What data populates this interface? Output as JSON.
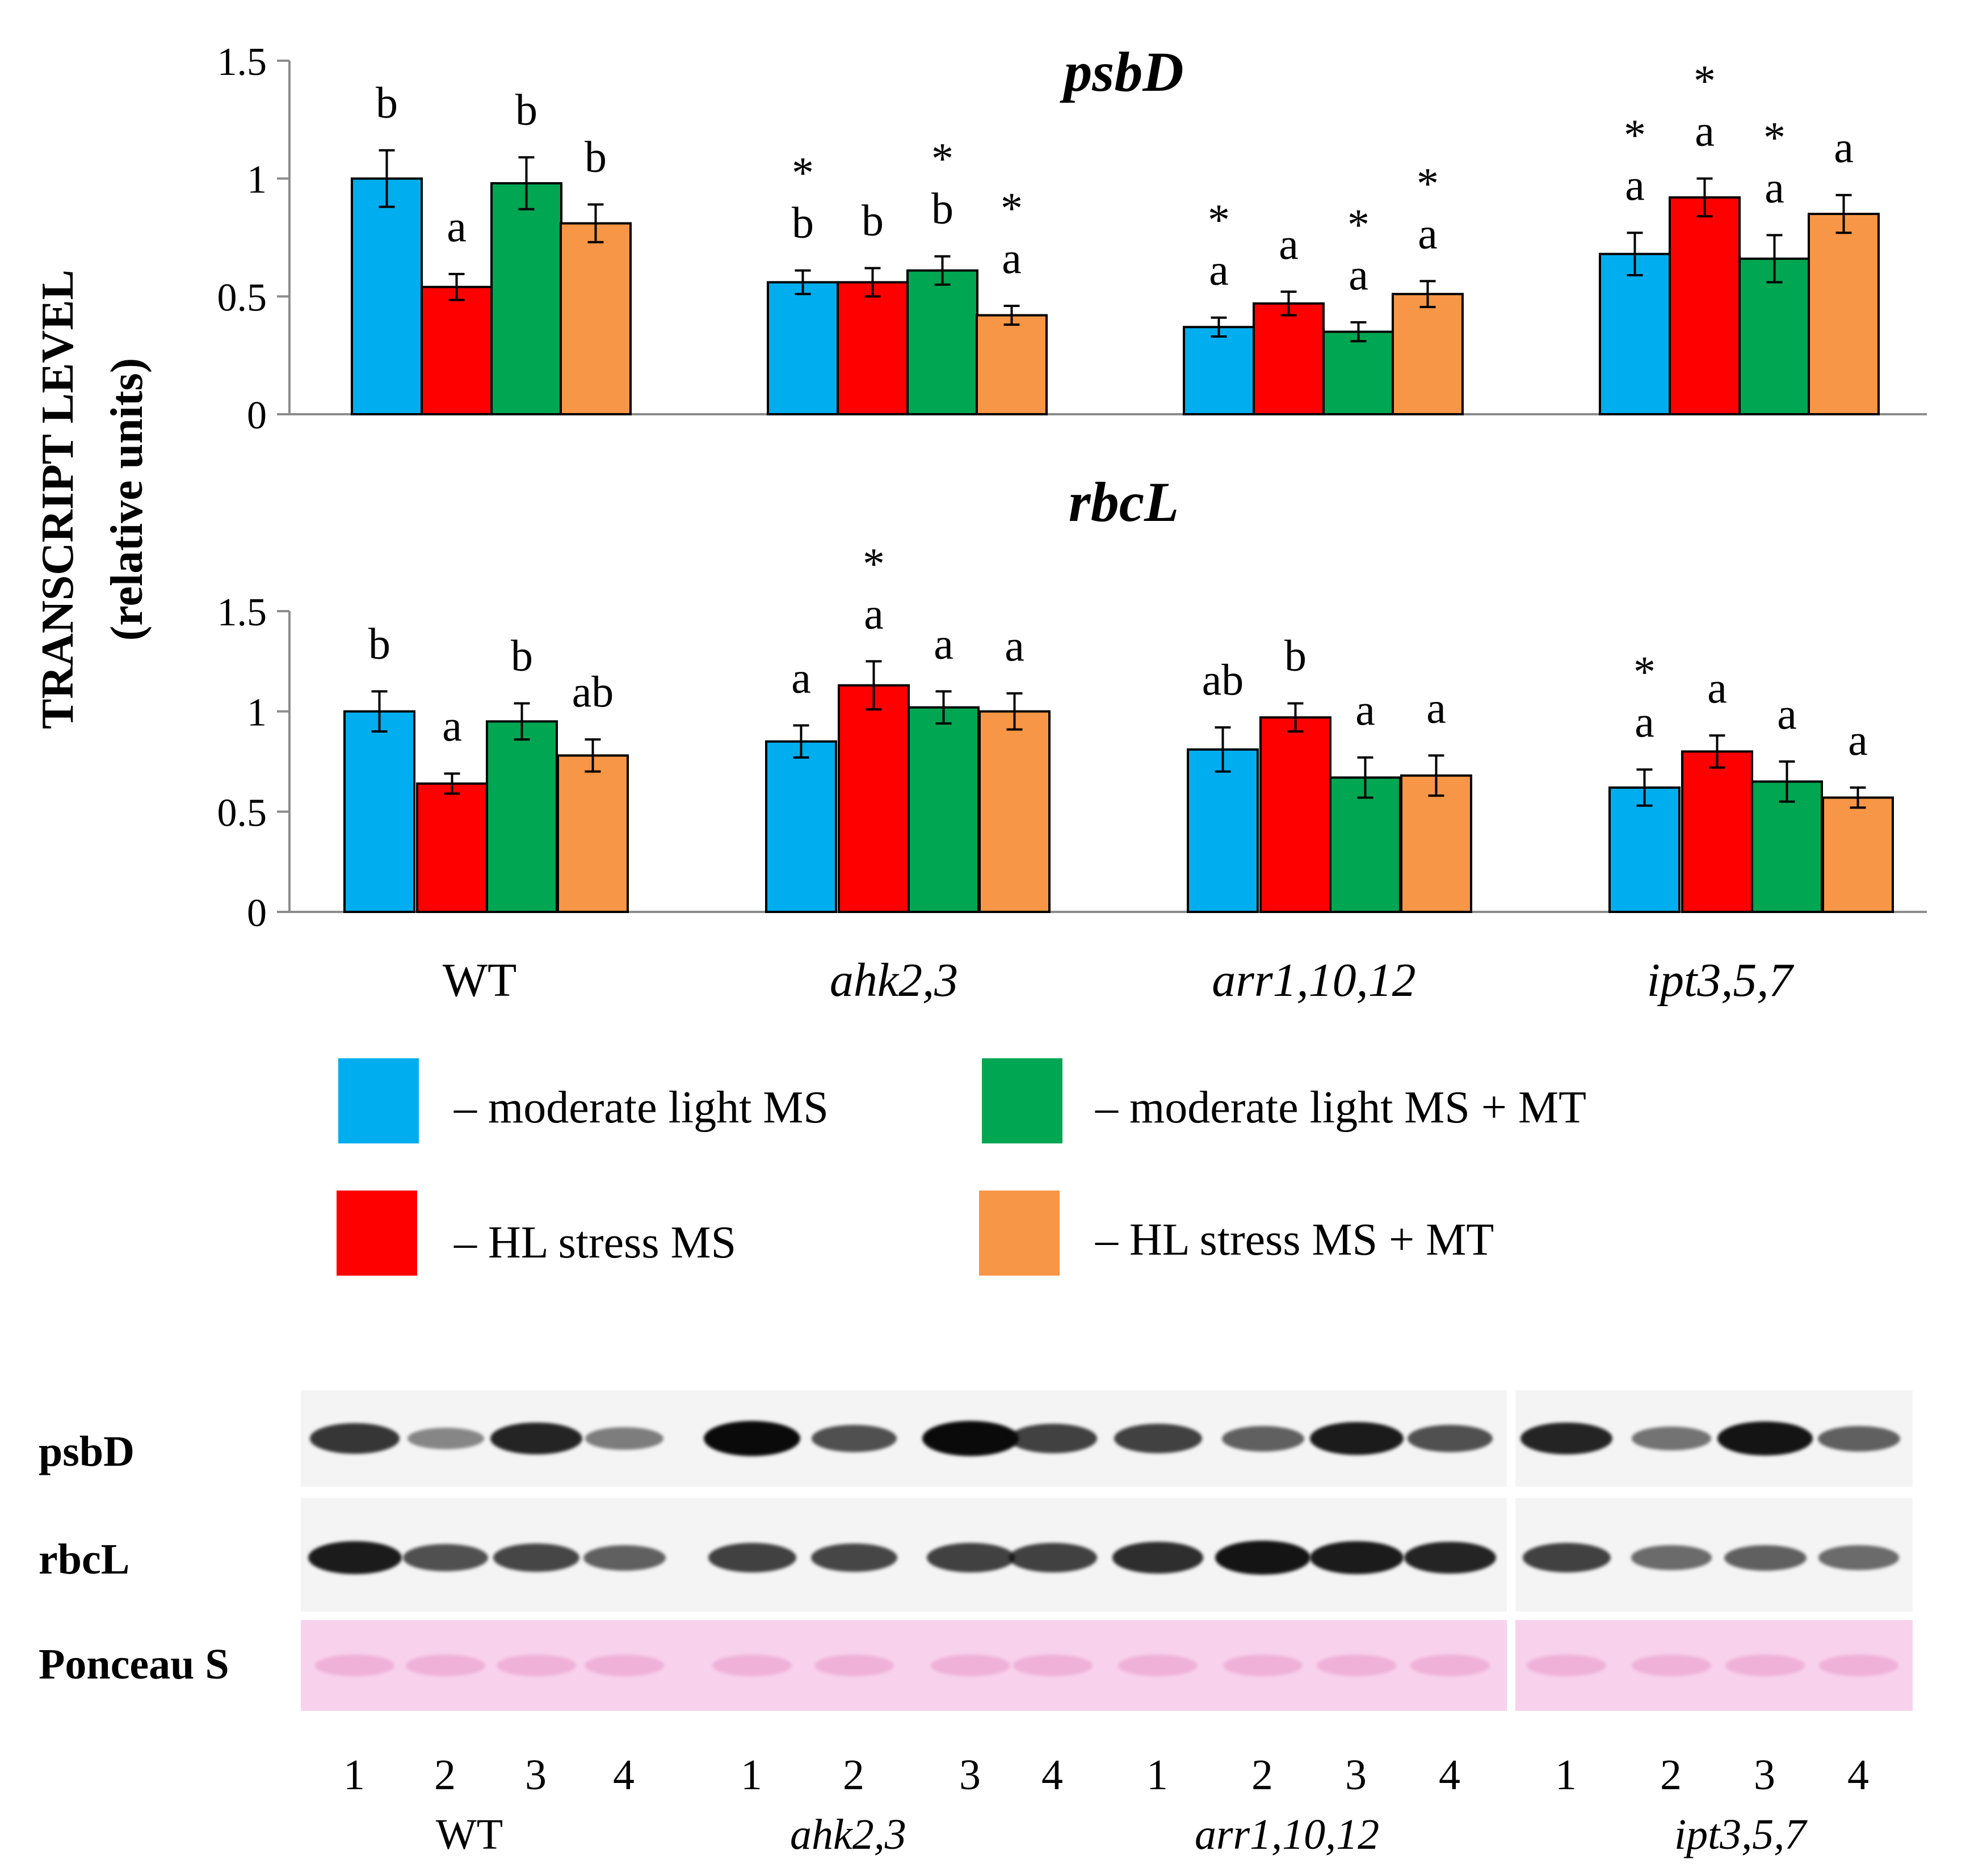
{
  "chart_data": {
    "type": "bar",
    "ylabel": "TRANSCRIPT LEVEL",
    "ylabel_sub": "(relative units)",
    "categories": [
      "WT",
      "ahk2,3",
      "arr1,10,12",
      "ipt3,5,7"
    ],
    "category_italic": [
      false,
      true,
      true,
      true
    ],
    "series_names": [
      "– moderate light MS",
      "– HL stress MS",
      "– moderate light MS + MT",
      "– HL stress MS + MT"
    ],
    "series_colors": [
      "#00AEEF",
      "#FF0000",
      "#00A651",
      "#F79646"
    ],
    "ylim": [
      0,
      1.5
    ],
    "yticks": [
      "0",
      "0.5",
      "1",
      "1.5"
    ],
    "panels": [
      {
        "title": "psbD",
        "values": [
          [
            1.0,
            0.54,
            0.98,
            0.81
          ],
          [
            0.56,
            0.56,
            0.61,
            0.42
          ],
          [
            0.37,
            0.47,
            0.35,
            0.51
          ],
          [
            0.68,
            0.92,
            0.66,
            0.85
          ]
        ],
        "errors": [
          [
            0.12,
            0.055,
            0.11,
            0.08
          ],
          [
            0.05,
            0.06,
            0.06,
            0.04
          ],
          [
            0.04,
            0.05,
            0.04,
            0.055
          ],
          [
            0.09,
            0.08,
            0.1,
            0.08
          ]
        ],
        "letters": [
          [
            "b",
            "a",
            "b",
            "b"
          ],
          [
            "b",
            "b",
            "b",
            "a"
          ],
          [
            "a",
            "a",
            "a",
            "a"
          ],
          [
            "a",
            "a",
            "a",
            "a"
          ]
        ],
        "stars": [
          [
            false,
            false,
            false,
            false
          ],
          [
            true,
            false,
            true,
            true
          ],
          [
            true,
            false,
            true,
            true
          ],
          [
            true,
            true,
            true,
            false
          ]
        ]
      },
      {
        "title": "rbcL",
        "values": [
          [
            1.0,
            0.64,
            0.95,
            0.78
          ],
          [
            0.85,
            1.13,
            1.02,
            1.0
          ],
          [
            0.81,
            0.97,
            0.67,
            0.68
          ],
          [
            0.62,
            0.8,
            0.65,
            0.57
          ]
        ],
        "errors": [
          [
            0.1,
            0.05,
            0.09,
            0.08
          ],
          [
            0.08,
            0.12,
            0.08,
            0.09
          ],
          [
            0.11,
            0.07,
            0.1,
            0.1
          ],
          [
            0.09,
            0.08,
            0.1,
            0.05
          ]
        ],
        "letters": [
          [
            "b",
            "a",
            "b",
            "ab"
          ],
          [
            "a",
            "a",
            "a",
            "a"
          ],
          [
            "ab",
            "b",
            "a",
            "a"
          ],
          [
            "a",
            "a",
            "a",
            "a"
          ]
        ],
        "stars": [
          [
            false,
            false,
            false,
            false
          ],
          [
            false,
            true,
            false,
            false
          ],
          [
            false,
            false,
            false,
            false
          ],
          [
            true,
            false,
            false,
            false
          ]
        ]
      }
    ]
  },
  "legend": [
    {
      "label": "– moderate light MS",
      "color": "#00AEEF"
    },
    {
      "label": "– moderate light MS + MT",
      "color": "#00A651"
    },
    {
      "label": "– HL stress MS",
      "color": "#FF0000"
    },
    {
      "label": "– HL stress MS + MT",
      "color": "#F79646"
    }
  ],
  "blot": {
    "rows": [
      "psbD",
      "rbcL",
      "Ponceau S"
    ],
    "lane_numbers": [
      "1",
      "2",
      "3",
      "4"
    ],
    "genotypes": [
      "WT",
      "ahk2,3",
      "arr1,10,12",
      "ipt3,5,7"
    ],
    "ponceau_color": "#F8D2EC",
    "band_intensity": {
      "psbD": [
        [
          0.75,
          0.3,
          0.85,
          0.35
        ],
        [
          1.0,
          0.6,
          1.0,
          0.7
        ],
        [
          0.7,
          0.5,
          0.9,
          0.6
        ],
        [
          0.85,
          0.4,
          0.95,
          0.5
        ]
      ],
      "rbcL": [
        [
          0.9,
          0.6,
          0.65,
          0.5
        ],
        [
          0.7,
          0.65,
          0.7,
          0.7
        ],
        [
          0.8,
          0.95,
          0.9,
          0.85
        ],
        [
          0.7,
          0.45,
          0.5,
          0.45
        ]
      ]
    }
  }
}
